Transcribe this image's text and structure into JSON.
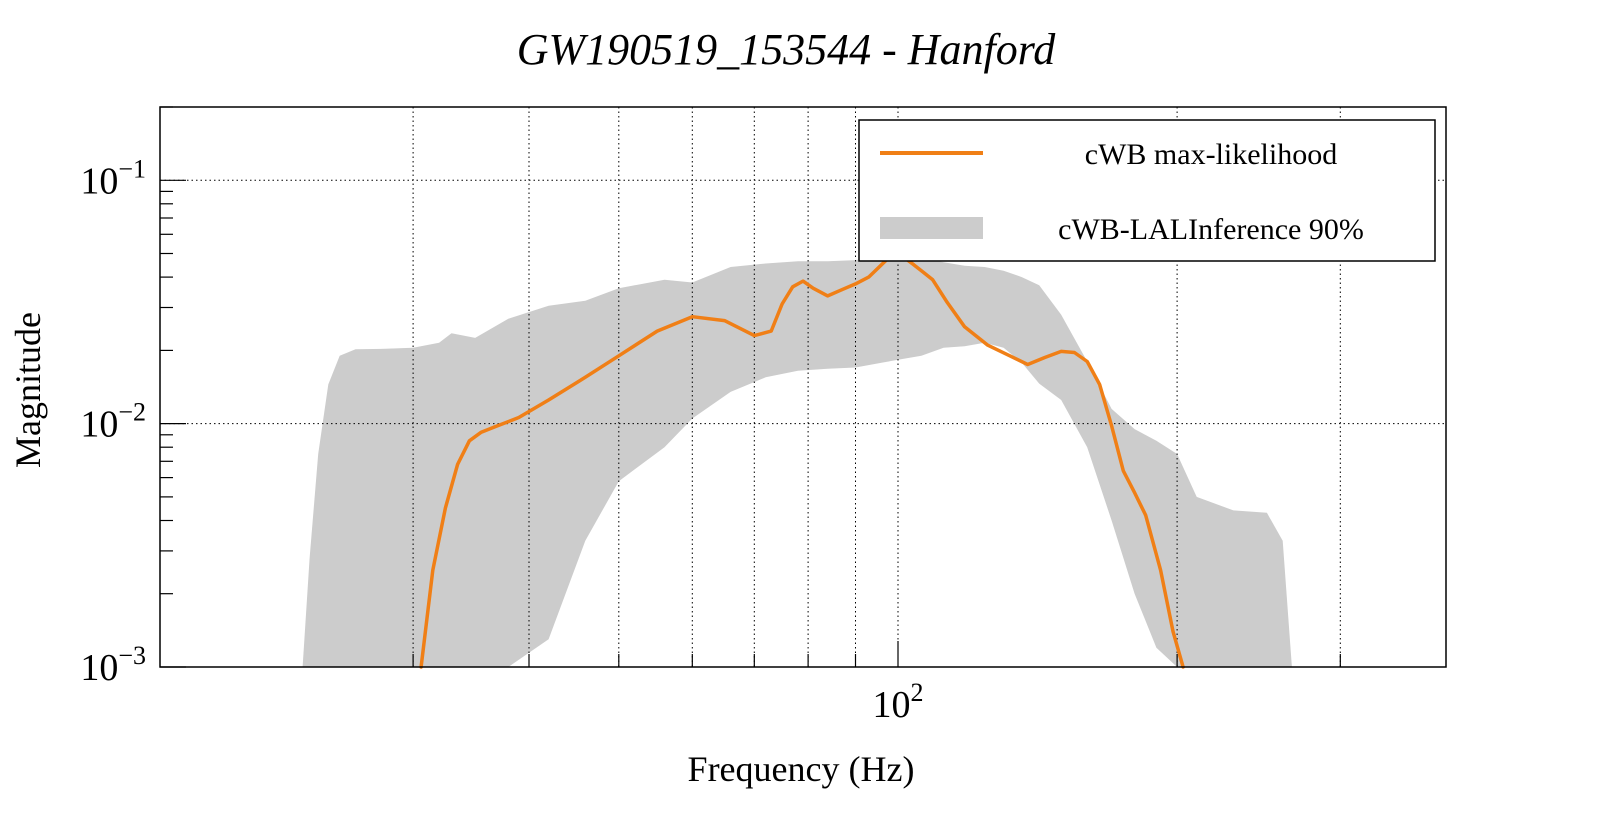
{
  "chart_data": {
    "type": "line",
    "title": "GW190519_153544 - Hanford",
    "xlabel": "Frequency (Hz)",
    "ylabel": "Magnitude",
    "xscale": "log",
    "yscale": "log",
    "xlim": [
      16,
      390
    ],
    "ylim": [
      0.001,
      0.2
    ],
    "grid": true,
    "legend_position": "top-right",
    "x_gridlines": [
      30,
      40,
      50,
      60,
      70,
      80,
      90,
      100,
      200,
      300
    ],
    "y_gridlines": [
      0.01,
      0.1
    ],
    "x_major_ticks": [
      {
        "value": 100,
        "base": "10",
        "exp": "2"
      }
    ],
    "y_major_ticks": [
      {
        "value": 0.001,
        "base": "10",
        "exp": "−3"
      },
      {
        "value": 0.01,
        "base": "10",
        "exp": "−2"
      },
      {
        "value": 0.1,
        "base": "10",
        "exp": "−1"
      }
    ],
    "colors": {
      "line": "#f07f16",
      "band": "#cccccc"
    },
    "series": [
      {
        "name": "cWB max-likelihood",
        "kind": "line",
        "x": [
          30.6,
          31.5,
          32.5,
          33.5,
          34.5,
          35.5,
          37,
          39,
          42,
          46,
          50,
          55,
          60,
          65,
          70,
          73,
          75,
          77,
          79,
          81,
          84,
          87,
          90,
          93,
          96,
          98,
          100,
          102,
          104,
          106,
          109,
          113,
          118,
          125,
          132,
          138,
          144,
          150,
          155,
          160,
          165,
          170,
          175,
          180,
          185,
          192,
          198,
          203
        ],
        "y": [
          0.001,
          0.0025,
          0.0045,
          0.0068,
          0.0085,
          0.0092,
          0.0098,
          0.0106,
          0.0125,
          0.0155,
          0.019,
          0.024,
          0.0275,
          0.0265,
          0.023,
          0.024,
          0.031,
          0.0365,
          0.0385,
          0.036,
          0.0335,
          0.0355,
          0.0375,
          0.04,
          0.045,
          0.0485,
          0.049,
          0.0475,
          0.045,
          0.0425,
          0.039,
          0.0315,
          0.025,
          0.021,
          0.019,
          0.0175,
          0.0187,
          0.0198,
          0.0196,
          0.018,
          0.0145,
          0.0098,
          0.0064,
          0.0052,
          0.0042,
          0.0025,
          0.0014,
          0.001
        ]
      },
      {
        "name": "cWB-LALInference 90%",
        "kind": "band",
        "x": [
          22.8,
          23.2,
          23.7,
          24.3,
          25,
          26,
          28,
          30,
          32,
          33,
          35,
          38,
          42,
          46,
          50,
          56,
          60,
          66,
          72,
          78,
          84,
          90,
          96,
          100,
          106,
          112,
          118,
          124,
          130,
          136,
          142,
          150,
          160,
          170,
          180,
          190,
          200,
          210,
          230,
          250,
          260,
          266
        ],
        "y_upper": [
          0.001,
          0.0028,
          0.0075,
          0.0145,
          0.019,
          0.0202,
          0.0203,
          0.0205,
          0.0215,
          0.0235,
          0.0225,
          0.027,
          0.0305,
          0.032,
          0.036,
          0.039,
          0.038,
          0.044,
          0.0455,
          0.0465,
          0.0465,
          0.047,
          0.049,
          0.05,
          0.048,
          0.046,
          0.0445,
          0.044,
          0.0425,
          0.04,
          0.037,
          0.028,
          0.018,
          0.0115,
          0.0095,
          0.0085,
          0.0075,
          0.005,
          0.0044,
          0.0043,
          0.0033,
          0.001
        ],
        "y_lower": [
          0.001,
          0.001,
          0.001,
          0.001,
          0.001,
          0.001,
          0.001,
          0.001,
          0.001,
          0.001,
          0.001,
          0.001,
          0.0013,
          0.0033,
          0.0058,
          0.008,
          0.0105,
          0.0135,
          0.0155,
          0.0165,
          0.0168,
          0.017,
          0.0178,
          0.0183,
          0.019,
          0.0205,
          0.0208,
          0.0215,
          0.0205,
          0.0178,
          0.0146,
          0.0125,
          0.008,
          0.004,
          0.002,
          0.0012,
          0.001,
          0.001,
          0.001,
          0.001,
          0.001,
          0.001
        ]
      }
    ]
  }
}
